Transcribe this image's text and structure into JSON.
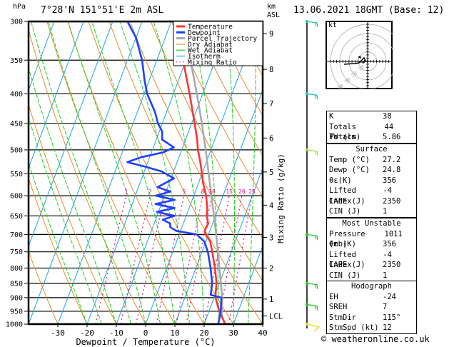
{
  "header": {
    "pressure_unit": "hPa",
    "location": "7°28'N  151°51'E  2m  ASL",
    "height_unit_line1": "km",
    "height_unit_line2": "ASL",
    "datetime": "13.06.2021  18GMT  (Base: 12)"
  },
  "colors": {
    "temperature": "#ff3333",
    "dewpoint": "#1f3fff",
    "parcel": "#aaaaaa",
    "dry_adiabat": "#e88a2a",
    "wet_adiabat": "#22cc22",
    "isotherm": "#1aa3e8",
    "mixing_ratio": "#e0108a"
  },
  "chart_data": {
    "type": "skew-t",
    "title": "7°28'N 151°51'E 2m ASL",
    "xlabel": "Dewpoint / Temperature (°C)",
    "ylabel_left": "hPa",
    "ylabel_right": "Mixing Ratio (g/kg)",
    "xlim": [
      -40,
      40
    ],
    "ylim_hpa": [
      1000,
      300
    ],
    "x_ticks": [
      -30,
      -20,
      -10,
      0,
      10,
      20,
      30,
      40
    ],
    "pressure_ticks": [
      300,
      350,
      400,
      450,
      500,
      550,
      600,
      650,
      700,
      750,
      800,
      850,
      900,
      950,
      1000
    ],
    "km_ticks": [
      {
        "label": "1",
        "p": 905
      },
      {
        "label": "2",
        "p": 800
      },
      {
        "label": "3",
        "p": 708
      },
      {
        "label": "4",
        "p": 623
      },
      {
        "label": "5",
        "p": 546
      },
      {
        "label": "6",
        "p": 477
      },
      {
        "label": "7",
        "p": 416
      },
      {
        "label": "8",
        "p": 363
      },
      {
        "label": "9",
        "p": 315
      },
      {
        "label": "LCL",
        "p": 968
      }
    ],
    "mixing_ratio_labels": [
      "1",
      "2",
      "3",
      "5",
      "8",
      "10",
      "15",
      "20",
      "25"
    ],
    "mixing_ratio_values": [
      1,
      2,
      3,
      5,
      8,
      10,
      15,
      20,
      25
    ],
    "legend": [
      {
        "label": "Temperature",
        "key": "temperature",
        "style": "thick"
      },
      {
        "label": "Dewpoint",
        "key": "dewpoint",
        "style": "thick"
      },
      {
        "label": "Parcel Trajectory",
        "key": "parcel",
        "style": "thick"
      },
      {
        "label": "Dry Adiabat",
        "key": "dry_adiabat",
        "style": "thin"
      },
      {
        "label": "Wet Adiabat",
        "key": "wet_adiabat",
        "style": "thin"
      },
      {
        "label": "Isotherm",
        "key": "isotherm",
        "style": "thin"
      },
      {
        "label": "Mixing Ratio",
        "key": "mixing_ratio",
        "style": "dotted"
      }
    ],
    "legend_position": "top-right",
    "series": [
      {
        "name": "Temperature",
        "points": [
          [
            1000,
            27.2
          ],
          [
            950,
            23.5
          ],
          [
            900,
            20.5
          ],
          [
            880,
            19.8
          ],
          [
            850,
            19.0
          ],
          [
            800,
            16.5
          ],
          [
            750,
            13.5
          ],
          [
            720,
            11.5
          ],
          [
            700,
            9.0
          ],
          [
            690,
            8.2
          ],
          [
            670,
            8.5
          ],
          [
            650,
            7.0
          ],
          [
            630,
            6.2
          ],
          [
            600,
            4.2
          ],
          [
            570,
            1.5
          ],
          [
            550,
            0.0
          ],
          [
            520,
            -2.5
          ],
          [
            500,
            -4.5
          ],
          [
            480,
            -6.0
          ],
          [
            450,
            -9.0
          ],
          [
            400,
            -14.5
          ],
          [
            350,
            -21.0
          ],
          [
            300,
            -29.0
          ]
        ]
      },
      {
        "name": "Dewpoint",
        "points": [
          [
            1000,
            24.8
          ],
          [
            950,
            24.0
          ],
          [
            900,
            22.5
          ],
          [
            890,
            18.5
          ],
          [
            850,
            17.5
          ],
          [
            800,
            15.0
          ],
          [
            750,
            12.0
          ],
          [
            720,
            9.5
          ],
          [
            700,
            6.0
          ],
          [
            690,
            -1.5
          ],
          [
            680,
            -4.0
          ],
          [
            670,
            -4.5
          ],
          [
            660,
            -7.5
          ],
          [
            650,
            -4.0
          ],
          [
            640,
            -10.5
          ],
          [
            630,
            -5.0
          ],
          [
            620,
            -12.0
          ],
          [
            610,
            -6.0
          ],
          [
            600,
            -13.0
          ],
          [
            590,
            -8.5
          ],
          [
            580,
            -13.5
          ],
          [
            560,
            -9.0
          ],
          [
            545,
            -14.0
          ],
          [
            535,
            -20.0
          ],
          [
            525,
            -27.0
          ],
          [
            515,
            -23.0
          ],
          [
            505,
            -16.0
          ],
          [
            495,
            -13.0
          ],
          [
            480,
            -18.0
          ],
          [
            465,
            -19.0
          ],
          [
            450,
            -21.5
          ],
          [
            430,
            -24.0
          ],
          [
            400,
            -29.0
          ],
          [
            380,
            -31.5
          ],
          [
            350,
            -35.0
          ],
          [
            320,
            -40.0
          ],
          [
            300,
            -45.0
          ]
        ]
      },
      {
        "name": "Parcel Trajectory",
        "points": [
          [
            1000,
            27.2
          ],
          [
            968,
            25.0
          ],
          [
            900,
            22.8
          ],
          [
            850,
            20.5
          ],
          [
            800,
            18.0
          ],
          [
            750,
            15.5
          ],
          [
            700,
            12.6
          ],
          [
            650,
            9.5
          ],
          [
            600,
            6.0
          ],
          [
            550,
            2.3
          ],
          [
            500,
            -1.8
          ],
          [
            450,
            -6.5
          ],
          [
            400,
            -12.0
          ],
          [
            350,
            -18.5
          ],
          [
            300,
            -26.5
          ]
        ]
      }
    ],
    "wind_barbs": [
      {
        "p": 300,
        "color": "#1fc8a0"
      },
      {
        "p": 400,
        "color": "#1fc0c8"
      },
      {
        "p": 500,
        "color": "#a0dd30"
      },
      {
        "p": 700,
        "color": "#20cc20"
      },
      {
        "p": 850,
        "color": "#20cc20"
      },
      {
        "p": 925,
        "color": "#20cc20"
      },
      {
        "p": 1000,
        "color": "#e8d820"
      }
    ]
  },
  "hodograph": {
    "unit": "kt",
    "ring_labels": [
      "10",
      "20",
      "30",
      "40"
    ]
  },
  "indices": {
    "general": [
      {
        "label": "K",
        "value": "38"
      },
      {
        "label": "Totals Totals",
        "value": "44"
      },
      {
        "label": "PW (cm)",
        "value": "5.86"
      }
    ],
    "surface": {
      "title": "Surface",
      "rows": [
        {
          "label": "Temp (°C)",
          "value": "27.2"
        },
        {
          "label": "Dewp (°C)",
          "value": "24.8"
        },
        {
          "label": "θε(K)",
          "value": "356"
        },
        {
          "label": "Lifted Index",
          "value": "-4"
        },
        {
          "label": "CAPE (J)",
          "value": "2350"
        },
        {
          "label": "CIN (J)",
          "value": "1"
        }
      ]
    },
    "most_unstable": {
      "title": "Most Unstable",
      "rows": [
        {
          "label": "Pressure (mb)",
          "value": "1011"
        },
        {
          "label": "θε (K)",
          "value": "356"
        },
        {
          "label": "Lifted Index",
          "value": "-4"
        },
        {
          "label": "CAPE (J)",
          "value": "2350"
        },
        {
          "label": "CIN (J)",
          "value": "1"
        }
      ]
    },
    "hodograph": {
      "title": "Hodograph",
      "rows": [
        {
          "label": "EH",
          "value": "-24"
        },
        {
          "label": "SREH",
          "value": "7"
        },
        {
          "label": "StmDir",
          "value": "115°"
        },
        {
          "label": "StmSpd (kt)",
          "value": "12"
        }
      ]
    }
  },
  "footer": {
    "copyright": "© weatheronline.co.uk"
  }
}
